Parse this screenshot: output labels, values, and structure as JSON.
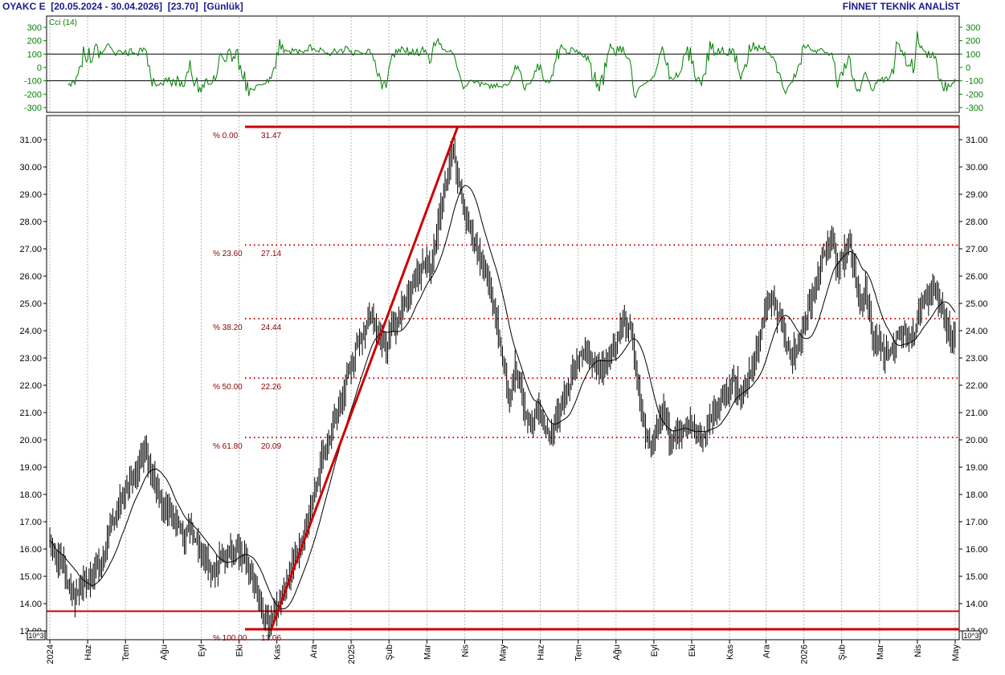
{
  "header": {
    "symbol": "OYAKC E",
    "date_range": "[20.05.2024 - 30.04.2026]",
    "last_price": "[23.70]",
    "period": "[Günlük]",
    "provider": "FİNNET TEKNİK ANALİST"
  },
  "colors": {
    "fib": "#cc0000",
    "price": "#000000",
    "cci": "#008000",
    "axis_text": "#1a1a8c"
  },
  "chart_data": [
    {
      "type": "line",
      "title": "Cci (14)",
      "ylim": [
        -300,
        300
      ],
      "yticks": [
        300,
        200,
        100,
        0,
        -100,
        -200,
        -300
      ],
      "reference_lines": [
        100,
        -100
      ]
    },
    {
      "type": "bar",
      "subtype": "ohlc",
      "ylim": [
        13.06,
        31.47
      ],
      "yticks": [
        "31.00",
        "30.00",
        "29.00",
        "28.00",
        "27.00",
        "26.00",
        "25.00",
        "24.00",
        "23.00",
        "22.00",
        "21.00",
        "20.00",
        "19.00",
        "18.00",
        "17.00",
        "16.00",
        "15.00",
        "14.00",
        "13.00"
      ],
      "scale_note": "10^3",
      "x_labels": [
        "2024",
        "Haz",
        "Tem",
        "Ağu",
        "Eyl",
        "Eki",
        "Kas",
        "Ara",
        "2025",
        "Şub",
        "Mar",
        "Nis",
        "May",
        "Haz",
        "Tem",
        "Ağu",
        "Eyl",
        "Eki",
        "Kas",
        "Ara",
        "2026",
        "Şub",
        "Mar",
        "Nis",
        "May"
      ],
      "price_path": [
        [
          0,
          16.3
        ],
        [
          5,
          15.8
        ],
        [
          10,
          15.2
        ],
        [
          14,
          14.6
        ],
        [
          18,
          14.2
        ],
        [
          24,
          14.9
        ],
        [
          30,
          15.0
        ],
        [
          36,
          15.5
        ],
        [
          44,
          16.8
        ],
        [
          52,
          17.9
        ],
        [
          58,
          18.6
        ],
        [
          64,
          19.0
        ],
        [
          68,
          19.7
        ],
        [
          72,
          18.8
        ],
        [
          76,
          18.2
        ],
        [
          80,
          17.6
        ],
        [
          86,
          17.2
        ],
        [
          92,
          16.8
        ],
        [
          96,
          16.3
        ],
        [
          100,
          16.8
        ],
        [
          106,
          16.2
        ],
        [
          110,
          15.6
        ],
        [
          116,
          15.2
        ],
        [
          122,
          15.6
        ],
        [
          128,
          15.8
        ],
        [
          134,
          16.0
        ],
        [
          140,
          15.6
        ],
        [
          145,
          14.8
        ],
        [
          150,
          14.0
        ],
        [
          154,
          13.4
        ],
        [
          158,
          13.2
        ],
        [
          161,
          13.7
        ],
        [
          166,
          14.5
        ],
        [
          172,
          15.2
        ],
        [
          178,
          16.0
        ],
        [
          184,
          17.0
        ],
        [
          190,
          18.3
        ],
        [
          195,
          19.6
        ],
        [
          200,
          20.2
        ],
        [
          206,
          21.0
        ],
        [
          212,
          22.3
        ],
        [
          218,
          23.2
        ],
        [
          224,
          24.1
        ],
        [
          230,
          24.6
        ],
        [
          236,
          23.7
        ],
        [
          240,
          23.4
        ],
        [
          245,
          24.2
        ],
        [
          250,
          24.6
        ],
        [
          256,
          25.4
        ],
        [
          262,
          25.9
        ],
        [
          268,
          26.5
        ],
        [
          272,
          26.3
        ],
        [
          276,
          27.5
        ],
        [
          280,
          28.8
        ],
        [
          284,
          30.0
        ],
        [
          288,
          30.7
        ],
        [
          292,
          29.2
        ],
        [
          296,
          28.3
        ],
        [
          300,
          27.6
        ],
        [
          304,
          27.1
        ],
        [
          308,
          26.5
        ],
        [
          312,
          25.8
        ],
        [
          316,
          25.1
        ],
        [
          320,
          24.0
        ],
        [
          324,
          22.6
        ],
        [
          328,
          21.4
        ],
        [
          332,
          22.6
        ],
        [
          336,
          22.0
        ],
        [
          340,
          20.8
        ],
        [
          344,
          20.4
        ],
        [
          348,
          21.2
        ],
        [
          352,
          20.5
        ],
        [
          356,
          20.0
        ],
        [
          360,
          20.6
        ],
        [
          364,
          21.1
        ],
        [
          370,
          22.0
        ],
        [
          376,
          22.8
        ],
        [
          382,
          23.3
        ],
        [
          388,
          22.8
        ],
        [
          394,
          22.5
        ],
        [
          400,
          23.2
        ],
        [
          406,
          23.8
        ],
        [
          410,
          24.3
        ],
        [
          414,
          24.1
        ],
        [
          418,
          22.7
        ],
        [
          422,
          21.0
        ],
        [
          426,
          20.2
        ],
        [
          430,
          19.9
        ],
        [
          434,
          20.6
        ],
        [
          438,
          21.1
        ],
        [
          442,
          20.2
        ],
        [
          446,
          20.1
        ],
        [
          452,
          20.5
        ],
        [
          458,
          20.6
        ],
        [
          464,
          19.9
        ],
        [
          470,
          20.6
        ],
        [
          476,
          21.2
        ],
        [
          482,
          21.8
        ],
        [
          488,
          22.1
        ],
        [
          494,
          21.6
        ],
        [
          500,
          22.5
        ],
        [
          506,
          23.6
        ],
        [
          510,
          24.8
        ],
        [
          514,
          25.2
        ],
        [
          518,
          24.8
        ],
        [
          522,
          24.3
        ],
        [
          526,
          23.5
        ],
        [
          530,
          23.1
        ],
        [
          534,
          23.5
        ],
        [
          538,
          24.0
        ],
        [
          542,
          24.8
        ],
        [
          546,
          25.5
        ],
        [
          550,
          26.3
        ],
        [
          554,
          27.2
        ],
        [
          558,
          27.4
        ],
        [
          562,
          26.2
        ],
        [
          566,
          26.7
        ],
        [
          570,
          27.3
        ],
        [
          574,
          26.2
        ],
        [
          578,
          24.9
        ],
        [
          582,
          25.6
        ],
        [
          586,
          24.1
        ],
        [
          590,
          23.6
        ],
        [
          594,
          23.2
        ],
        [
          598,
          23.1
        ],
        [
          602,
          23.4
        ],
        [
          606,
          23.8
        ],
        [
          610,
          23.9
        ],
        [
          614,
          23.6
        ],
        [
          618,
          24.2
        ],
        [
          622,
          25.0
        ],
        [
          626,
          25.2
        ],
        [
          630,
          25.6
        ],
        [
          634,
          24.9
        ],
        [
          638,
          24.6
        ],
        [
          642,
          24.0
        ],
        [
          646,
          23.6
        ]
      ],
      "fibonacci": [
        {
          "pct": "% 0.00",
          "value": "31.47"
        },
        {
          "pct": "% 23.60",
          "value": "27.14"
        },
        {
          "pct": "% 38.20",
          "value": "24.44"
        },
        {
          "pct": "% 50.00",
          "value": "22.26"
        },
        {
          "pct": "% 61.80",
          "value": "20.09"
        },
        {
          "pct": "% 100.00",
          "value": "13.06"
        }
      ],
      "fib_levels": [
        31.47,
        27.14,
        24.44,
        22.26,
        20.09,
        13.06
      ],
      "support_line": 13.72,
      "trend_line": {
        "from": [
          158,
          13.06
        ],
        "to": [
          291,
          31.47
        ]
      }
    }
  ]
}
